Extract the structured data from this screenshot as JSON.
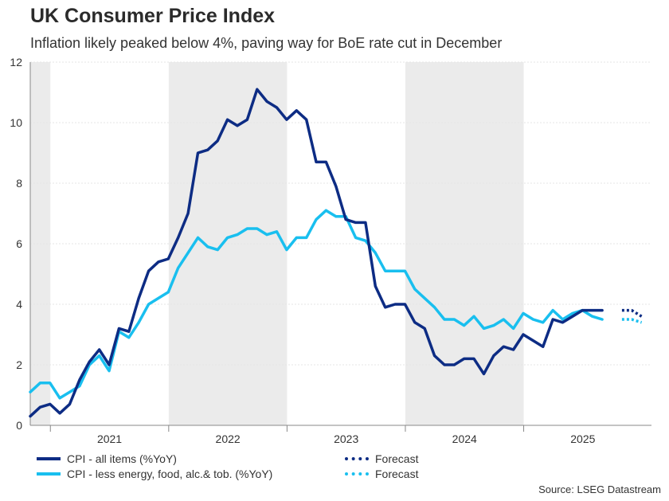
{
  "header": {
    "title": "UK Consumer Price Index",
    "subtitle": "Inflation likely peaked below 4%, paving way for BoE rate cut in December"
  },
  "legend": {
    "cpi_all": "CPI - all items (%YoY)",
    "cpi_core": "CPI - less energy, food, alc.& tob. (%YoY)",
    "forecast_all": "Forecast",
    "forecast_core": "Forecast"
  },
  "source": "Source: LSEG Datastream",
  "colors": {
    "cpi_all": "#0d2c84",
    "cpi_core": "#19bfef",
    "shade": "#ebebeb",
    "grid": "#e6e6e6"
  },
  "chart_data": {
    "type": "line",
    "title": "UK Consumer Price Index",
    "subtitle": "Inflation likely peaked below 4%, paving way for BoE rate cut in December",
    "xlabel": "",
    "ylabel": "",
    "ylim": [
      0,
      12
    ],
    "yticks": [
      "0",
      "2",
      "4",
      "6",
      "8",
      "10",
      "12"
    ],
    "xlim": [
      2020.33,
      2025.58
    ],
    "year_labels": [
      {
        "label": "2021",
        "x": 2021.0
      },
      {
        "label": "2022",
        "x": 2022.0
      },
      {
        "label": "2023",
        "x": 2023.0
      },
      {
        "label": "2024",
        "x": 2024.0
      },
      {
        "label": "2025",
        "x": 2025.0
      }
    ],
    "year_boundaries": [
      2020.5,
      2021.5,
      2022.5,
      2023.5,
      2024.5
    ],
    "shaded_ranges": [
      [
        2020.33,
        2020.5
      ],
      [
        2021.5,
        2022.5
      ],
      [
        2023.5,
        2024.5
      ]
    ],
    "grid": true,
    "legend_position": "bottom-left",
    "series": [
      {
        "name": "CPI - all items (%YoY)",
        "color": "#0d2c84",
        "style": "solid",
        "start": 2020.33,
        "step": 0.08333,
        "values": [
          0.3,
          0.6,
          0.7,
          0.4,
          0.7,
          1.5,
          2.1,
          2.5,
          2.0,
          3.2,
          3.1,
          4.2,
          5.1,
          5.4,
          5.5,
          6.2,
          7.0,
          9.0,
          9.1,
          9.4,
          10.1,
          9.9,
          10.1,
          11.1,
          10.7,
          10.5,
          10.1,
          10.4,
          10.1,
          8.7,
          8.7,
          7.9,
          6.8,
          6.7,
          6.7,
          4.6,
          3.9,
          4.0,
          4.0,
          3.4,
          3.2,
          2.3,
          2.0,
          2.0,
          2.2,
          2.2,
          1.7,
          2.3,
          2.6,
          2.5,
          3.0,
          2.8,
          2.6,
          3.5,
          3.4,
          3.6,
          3.8,
          3.8,
          3.8
        ]
      },
      {
        "name": "CPI - less energy, food, alc.& tob. (%YoY)",
        "color": "#19bfef",
        "style": "solid",
        "start": 2020.33,
        "step": 0.08333,
        "values": [
          1.1,
          1.4,
          1.4,
          0.9,
          1.1,
          1.3,
          2.0,
          2.3,
          1.8,
          3.1,
          2.9,
          3.4,
          4.0,
          4.2,
          4.4,
          5.2,
          5.7,
          6.2,
          5.9,
          5.8,
          6.2,
          6.3,
          6.5,
          6.5,
          6.3,
          6.4,
          5.8,
          6.2,
          6.2,
          6.8,
          7.1,
          6.9,
          6.9,
          6.2,
          6.1,
          5.7,
          5.1,
          5.1,
          5.1,
          4.5,
          4.2,
          3.9,
          3.5,
          3.5,
          3.3,
          3.6,
          3.2,
          3.3,
          3.5,
          3.2,
          3.7,
          3.5,
          3.4,
          3.8,
          3.5,
          3.7,
          3.8,
          3.6,
          3.5
        ]
      },
      {
        "name": "Forecast",
        "color": "#0d2c84",
        "style": "dotted",
        "start": 2025.33,
        "step": 0.08333,
        "values": [
          3.8,
          3.8,
          3.6
        ]
      },
      {
        "name": "Forecast",
        "color": "#19bfef",
        "style": "dotted",
        "start": 2025.33,
        "step": 0.08333,
        "values": [
          3.5,
          3.5,
          3.4
        ]
      }
    ]
  }
}
